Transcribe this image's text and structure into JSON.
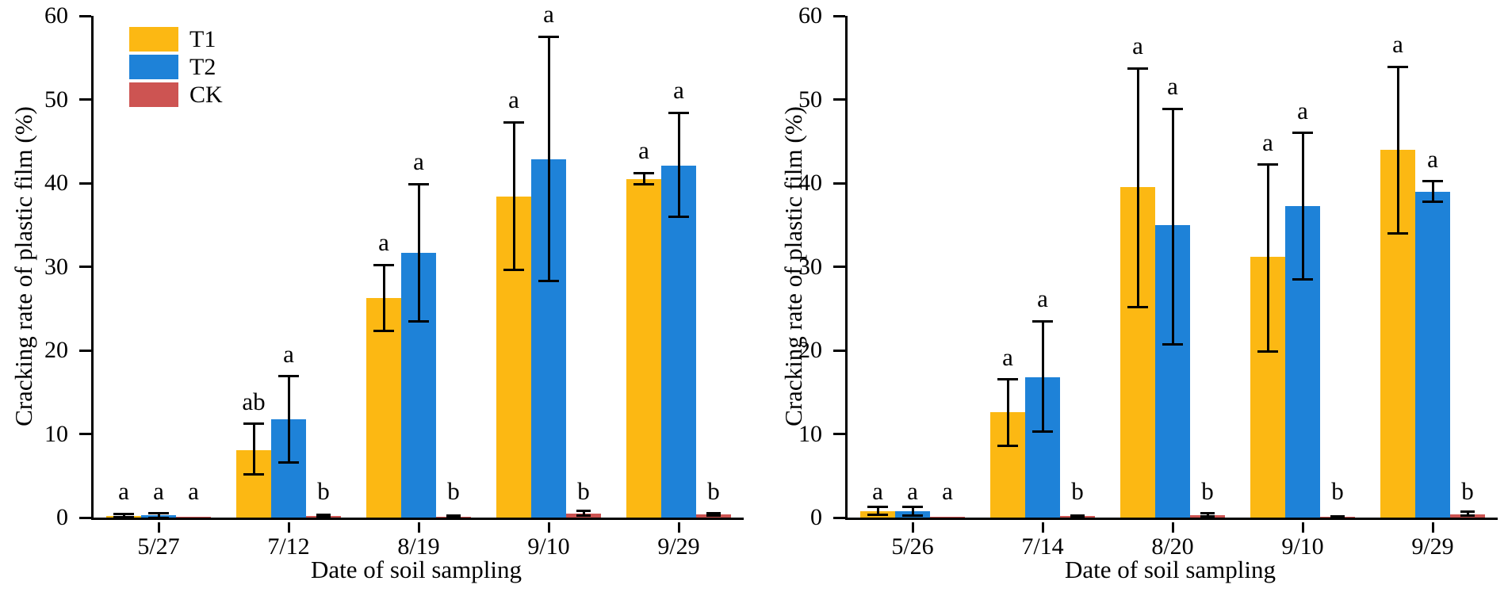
{
  "figure_background": "#ffffff",
  "legend": {
    "items": [
      {
        "label": "T1",
        "color": "#FCB813"
      },
      {
        "label": "T2",
        "color": "#1E82D8"
      },
      {
        "label": "CK",
        "color": "#CD5452"
      }
    ]
  },
  "chart_data": [
    {
      "type": "bar",
      "panel": "left",
      "title": "",
      "xlabel": "Date of soil sampling",
      "ylabel": "Cracking rate of plastic film (%)",
      "ylim": [
        0,
        60
      ],
      "yticks": [
        0,
        10,
        20,
        30,
        40,
        50,
        60
      ],
      "grid": false,
      "legend_position": "inside top-left",
      "categories": [
        "5/27",
        "7/12",
        "8/19",
        "9/10",
        "9/29"
      ],
      "series": [
        {
          "name": "T1",
          "color": "#FCB813",
          "values": [
            0.2,
            8.1,
            26.3,
            38.4,
            40.5
          ],
          "err_lo": [
            0.05,
            5.2,
            22.3,
            29.6,
            39.9
          ],
          "err_hi": [
            0.4,
            11.2,
            30.2,
            47.3,
            41.2
          ],
          "letters": [
            "a",
            "ab",
            "a",
            "a",
            "a"
          ]
        },
        {
          "name": "T2",
          "color": "#1E82D8",
          "values": [
            0.25,
            11.8,
            31.7,
            42.8,
            42.1
          ],
          "err_lo": [
            0.0,
            6.6,
            23.5,
            28.3,
            36.0
          ],
          "err_hi": [
            0.55,
            16.9,
            39.9,
            57.5,
            48.4
          ],
          "letters": [
            "a",
            "a",
            "a",
            "a",
            "a"
          ]
        },
        {
          "name": "CK",
          "color": "#CD5452",
          "values": [
            0.05,
            0.2,
            0.08,
            0.45,
            0.35
          ],
          "err_lo": [
            0.0,
            0.1,
            0.0,
            0.25,
            0.2
          ],
          "err_hi": [
            0.0,
            0.35,
            0.2,
            0.8,
            0.55
          ],
          "letters": [
            "a",
            "b",
            "b",
            "b",
            "b"
          ]
        }
      ]
    },
    {
      "type": "bar",
      "panel": "right",
      "title": "",
      "xlabel": "Date of soil sampling",
      "ylabel": "Cracking rate of plastic film (%)",
      "ylim": [
        0,
        60
      ],
      "yticks": [
        0,
        10,
        20,
        30,
        40,
        50,
        60
      ],
      "grid": false,
      "legend_position": "none",
      "categories": [
        "5/26",
        "7/14",
        "8/20",
        "9/10",
        "9/29"
      ],
      "series": [
        {
          "name": "T1",
          "color": "#FCB813",
          "values": [
            0.8,
            12.6,
            39.5,
            31.2,
            44.0
          ],
          "err_lo": [
            0.35,
            8.6,
            25.2,
            19.9,
            34.0
          ],
          "err_hi": [
            1.25,
            16.5,
            53.7,
            42.2,
            53.9
          ],
          "letters": [
            "a",
            "a",
            "a",
            "a",
            "a"
          ]
        },
        {
          "name": "T2",
          "color": "#1E82D8",
          "values": [
            0.8,
            16.8,
            35.0,
            37.3,
            39.0
          ],
          "err_lo": [
            0.25,
            10.3,
            20.7,
            28.5,
            37.8
          ],
          "err_hi": [
            1.3,
            23.5,
            48.9,
            46.0,
            40.2
          ],
          "letters": [
            "a",
            "a",
            "a",
            "a",
            "a"
          ]
        },
        {
          "name": "CK",
          "color": "#CD5452",
          "values": [
            0.05,
            0.15,
            0.3,
            0.1,
            0.4
          ],
          "err_lo": [
            0.0,
            0.08,
            0.15,
            0.0,
            0.25
          ],
          "err_hi": [
            0.0,
            0.27,
            0.5,
            0.18,
            0.7
          ],
          "letters": [
            "a",
            "b",
            "b",
            "b",
            "b"
          ]
        }
      ]
    }
  ]
}
